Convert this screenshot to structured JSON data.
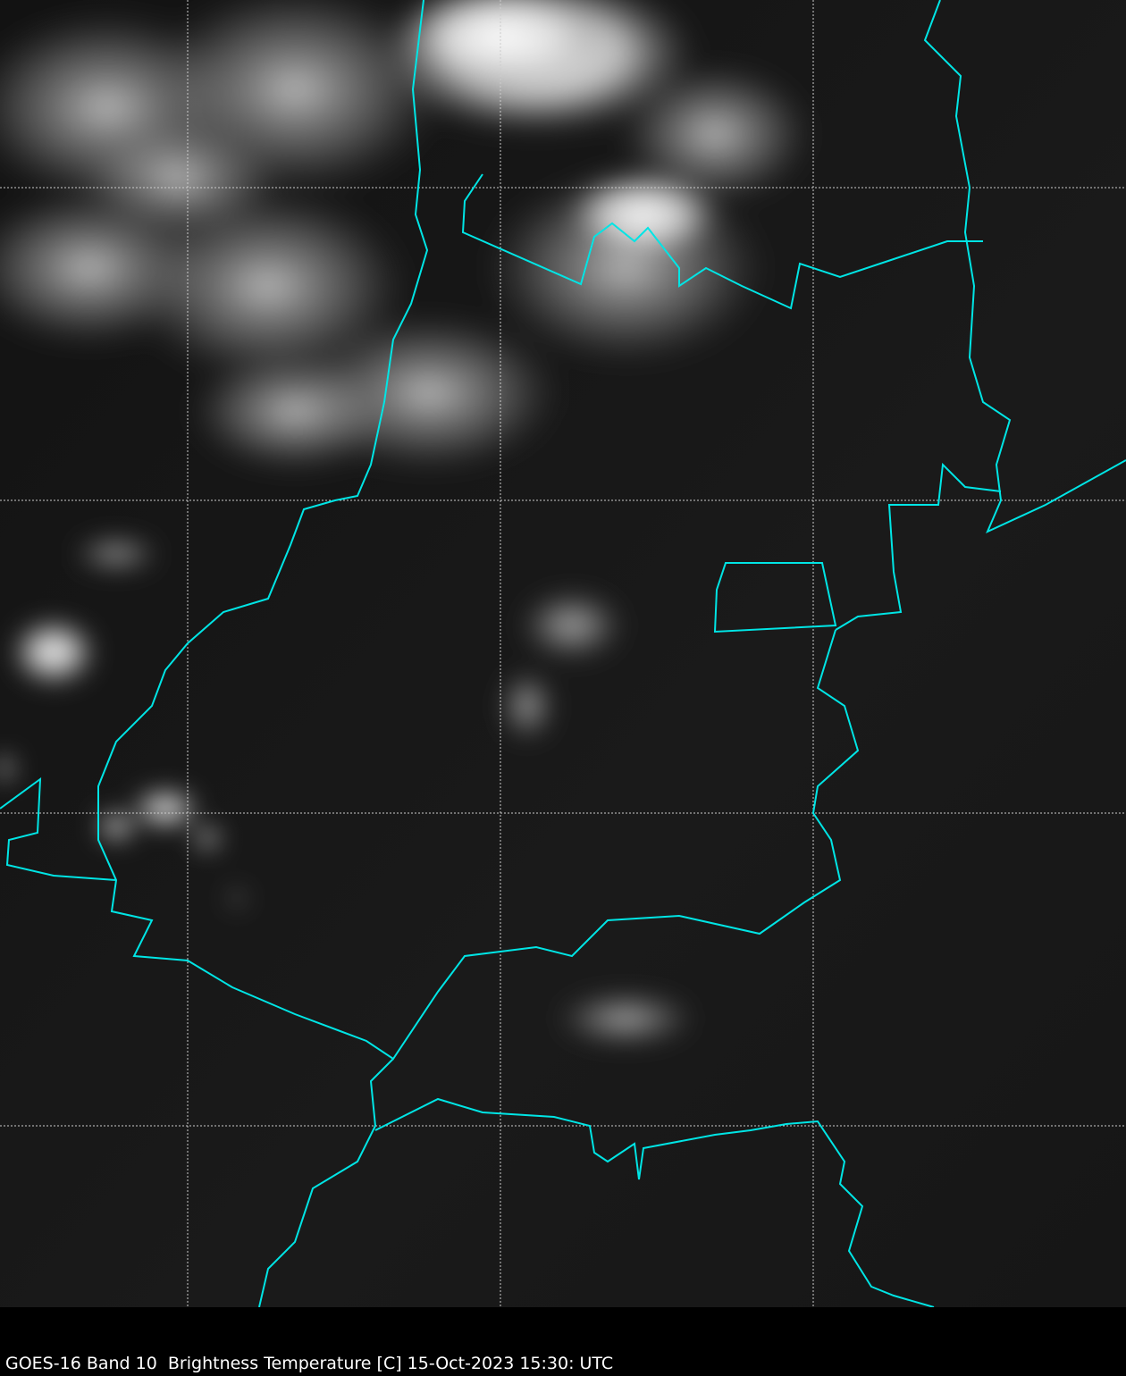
{
  "caption": "GOES-16 Band 10  Brightness Temperature [C] 15-Oct-2023 15:30: UTC",
  "colors": {
    "background": "#141414",
    "borders": "#00e5e5",
    "gridlines": "#cccccc",
    "clouds": "#e8e8e8"
  },
  "layers": [
    "satellite-imagery",
    "political-borders",
    "lat-lon-gridlines"
  ]
}
